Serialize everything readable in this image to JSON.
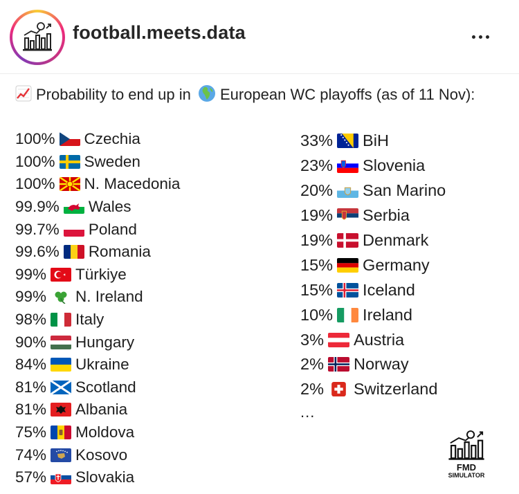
{
  "account": {
    "username": "football.meets.data",
    "avatar_icon": "bar-chart-ball-icon",
    "more_icon": "more-horizontal-icon"
  },
  "caption": {
    "text": "Probability to end up in",
    "highlight_text": "European WC playoffs (as of 11 Nov):",
    "emoji_icon": "chart-increasing-icon",
    "globe_icon": "globe-europe-africa-icon"
  },
  "left_list": [
    {
      "pct": "100%",
      "country": "Czechia",
      "flag": "cz"
    },
    {
      "pct": "100%",
      "country": "Sweden",
      "flag": "se"
    },
    {
      "pct": "100%",
      "country": "N. Macedonia",
      "flag": "mk"
    },
    {
      "pct": "99.9%",
      "country": "Wales",
      "flag": "wales"
    },
    {
      "pct": "99.7%",
      "country": "Poland",
      "flag": "pl"
    },
    {
      "pct": "99.6%",
      "country": "Romania",
      "flag": "ro"
    },
    {
      "pct": "99%",
      "country": "Türkiye",
      "flag": "tr"
    },
    {
      "pct": "99%",
      "country": "N. Ireland",
      "flag": "shamrock"
    },
    {
      "pct": "98%",
      "country": "Italy",
      "flag": "it"
    },
    {
      "pct": "90%",
      "country": "Hungary",
      "flag": "hu"
    },
    {
      "pct": "84%",
      "country": "Ukraine",
      "flag": "ua"
    },
    {
      "pct": "81%",
      "country": "Scotland",
      "flag": "scotland"
    },
    {
      "pct": "81%",
      "country": "Albania",
      "flag": "al"
    },
    {
      "pct": "75%",
      "country": "Moldova",
      "flag": "md"
    },
    {
      "pct": "74%",
      "country": "Kosovo",
      "flag": "xk"
    },
    {
      "pct": "57%",
      "country": "Slovakia",
      "flag": "sk"
    }
  ],
  "right_list": [
    {
      "pct": "33%",
      "country": "BiH",
      "flag": "ba"
    },
    {
      "pct": "23%",
      "country": "Slovenia",
      "flag": "si"
    },
    {
      "pct": "20%",
      "country": "San Marino",
      "flag": "sm"
    },
    {
      "pct": "19%",
      "country": "Serbia",
      "flag": "rs"
    },
    {
      "pct": "19%",
      "country": "Denmark",
      "flag": "dk"
    },
    {
      "pct": "15%",
      "country": "Germany",
      "flag": "de"
    },
    {
      "pct": "15%",
      "country": "Iceland",
      "flag": "is"
    },
    {
      "pct": "10%",
      "country": "Ireland",
      "flag": "ie"
    },
    {
      "pct": "3%",
      "country": "Austria",
      "flag": "at"
    },
    {
      "pct": "2%",
      "country": "Norway",
      "flag": "no"
    },
    {
      "pct": "2%",
      "country": "Switzerland",
      "flag": "ch"
    }
  ],
  "ellipsis": "...",
  "watermark": {
    "title": "FMD",
    "subtitle": "SIMULATOR"
  }
}
